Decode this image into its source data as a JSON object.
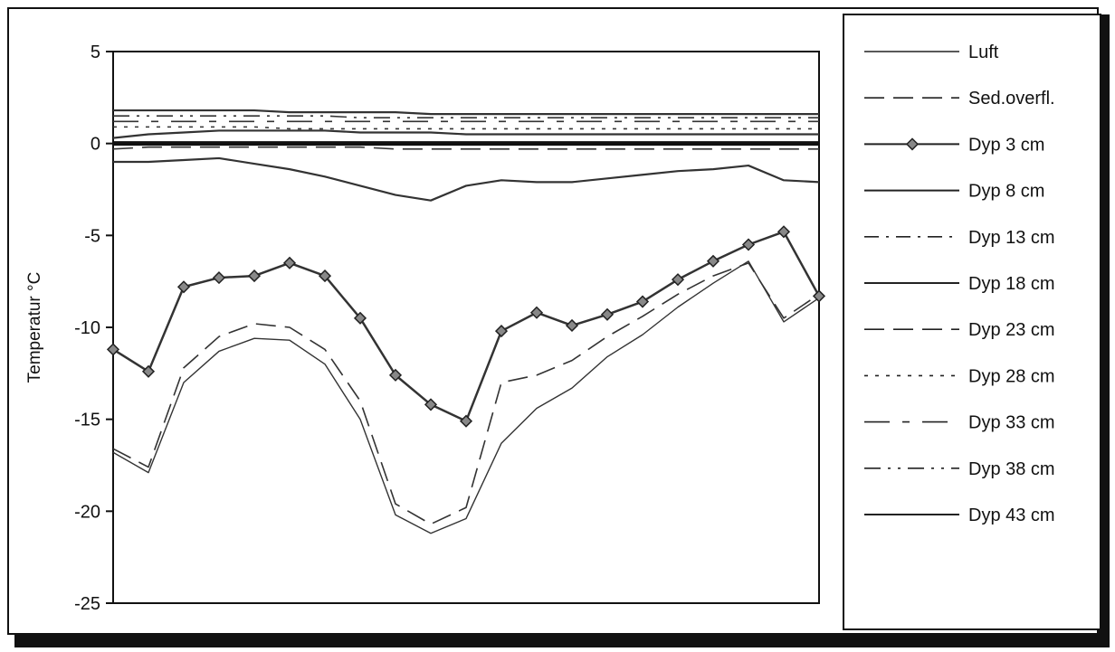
{
  "chart_data": {
    "type": "line",
    "title": "",
    "xlabel": "",
    "ylabel": "Temperatur °C",
    "ylim": [
      -25,
      5
    ],
    "yticks": [
      5,
      0,
      -5,
      -10,
      -15,
      -20,
      -25
    ],
    "ytick_labels": [
      "5",
      "0",
      "-5",
      "-10",
      "-15",
      "-20",
      "-25"
    ],
    "x": [
      0,
      5,
      10,
      15,
      20,
      25,
      30,
      35,
      40,
      45,
      50,
      55,
      60,
      65,
      70,
      75,
      80,
      85,
      90,
      95,
      100
    ],
    "xlim": [
      0,
      100
    ],
    "grid": false,
    "legend_position": "right",
    "series": [
      {
        "name": "Luft",
        "style": "solid-thin",
        "values": [
          -16.8,
          -17.9,
          -13,
          -11.3,
          -10.6,
          -10.7,
          -12,
          -15,
          -20.2,
          -21.2,
          -20.4,
          -16.3,
          -14.4,
          -13.3,
          -11.6,
          -10.4,
          -8.9,
          -7.6,
          -6.4,
          -9.7,
          -8.4
        ]
      },
      {
        "name": "Sed.overfl.",
        "style": "dashed",
        "values": [
          -16.6,
          -17.6,
          -12.2,
          -10.5,
          -9.8,
          -10,
          -11.2,
          -14,
          -19.6,
          -20.7,
          -19.8,
          -13,
          -12.6,
          -11.8,
          -10.5,
          -9.4,
          -8.2,
          -7.2,
          -6.5,
          -9.5,
          -8.2
        ]
      },
      {
        "name": "Dyp 3 cm",
        "style": "diamond",
        "values": [
          -11.2,
          -12.4,
          -7.8,
          -7.3,
          -7.2,
          -6.5,
          -7.2,
          -9.5,
          -12.6,
          -14.2,
          -15.1,
          -10.2,
          -9.2,
          -9.9,
          -9.3,
          -8.6,
          -7.4,
          -6.4,
          -5.5,
          -4.8,
          -8.3
        ]
      },
      {
        "name": "Dyp 8 cm",
        "style": "solid",
        "values": [
          -1.0,
          -1.0,
          -0.9,
          -0.8,
          -1.1,
          -1.4,
          -1.8,
          -2.3,
          -2.8,
          -3.1,
          -2.3,
          -2.0,
          -2.1,
          -2.1,
          -1.9,
          -1.7,
          -1.5,
          -1.4,
          -1.2,
          -2.0,
          -2.1
        ]
      },
      {
        "name": "Dyp 13 cm",
        "style": "dashdot",
        "values": [
          0.0,
          0.0,
          0.0,
          0.0,
          0.0,
          0.0,
          0.0,
          0.0,
          0.0,
          0.0,
          0.0,
          0.0,
          0.0,
          0.0,
          0.0,
          0.0,
          0.0,
          0.0,
          0.0,
          0.0,
          0.0
        ]
      },
      {
        "name": "Dyp 18 cm",
        "style": "solid",
        "values": [
          0.3,
          0.5,
          0.6,
          0.7,
          0.7,
          0.7,
          0.7,
          0.6,
          0.6,
          0.6,
          0.5,
          0.5,
          0.5,
          0.5,
          0.5,
          0.5,
          0.5,
          0.5,
          0.5,
          0.5,
          0.5
        ]
      },
      {
        "name": "Dyp 23 cm",
        "style": "dashed",
        "values": [
          -0.3,
          -0.2,
          -0.2,
          -0.2,
          -0.2,
          -0.2,
          -0.2,
          -0.2,
          -0.3,
          -0.3,
          -0.3,
          -0.3,
          -0.3,
          -0.3,
          -0.3,
          -0.3,
          -0.3,
          -0.3,
          -0.3,
          -0.3,
          -0.3
        ]
      },
      {
        "name": "Dyp 28 cm",
        "style": "dotted",
        "values": [
          0.9,
          0.9,
          0.9,
          0.9,
          0.9,
          0.8,
          0.8,
          0.8,
          0.8,
          0.8,
          0.8,
          0.8,
          0.8,
          0.8,
          0.8,
          0.8,
          0.8,
          0.8,
          0.8,
          0.8,
          0.8
        ]
      },
      {
        "name": "Dyp 33 cm",
        "style": "longdash",
        "values": [
          1.2,
          1.2,
          1.2,
          1.2,
          1.2,
          1.2,
          1.2,
          1.2,
          1.2,
          1.2,
          1.2,
          1.2,
          1.2,
          1.2,
          1.2,
          1.2,
          1.2,
          1.2,
          1.2,
          1.2,
          1.2
        ]
      },
      {
        "name": "Dyp 38 cm",
        "style": "dashdotdot",
        "values": [
          1.5,
          1.5,
          1.5,
          1.5,
          1.5,
          1.5,
          1.5,
          1.4,
          1.4,
          1.4,
          1.4,
          1.4,
          1.4,
          1.4,
          1.4,
          1.4,
          1.4,
          1.4,
          1.4,
          1.4,
          1.4
        ]
      },
      {
        "name": "Dyp 43 cm",
        "style": "solid",
        "values": [
          1.8,
          1.8,
          1.8,
          1.8,
          1.8,
          1.7,
          1.7,
          1.7,
          1.7,
          1.6,
          1.6,
          1.6,
          1.6,
          1.6,
          1.6,
          1.6,
          1.6,
          1.6,
          1.6,
          1.6,
          1.6
        ]
      }
    ]
  }
}
